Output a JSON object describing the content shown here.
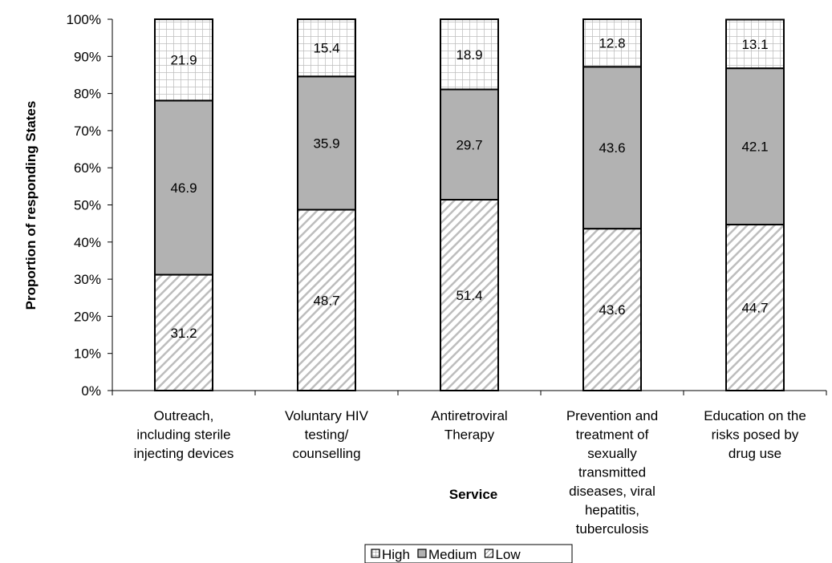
{
  "chart_data": {
    "type": "bar",
    "stacked": true,
    "percent": true,
    "title": "",
    "xlabel": "Service",
    "ylabel": "Proportion of responding States",
    "ylim": [
      0,
      100
    ],
    "y_ticks": [
      "0%",
      "10%",
      "20%",
      "30%",
      "40%",
      "50%",
      "60%",
      "70%",
      "80%",
      "90%",
      "100%"
    ],
    "categories": [
      [
        "Outreach,",
        "including sterile",
        "injecting devices"
      ],
      [
        "Voluntary HIV",
        "testing/",
        "counselling"
      ],
      [
        "Antiretroviral",
        "Therapy"
      ],
      [
        "Prevention and",
        "treatment of",
        "sexually",
        "transmitted",
        "diseases, viral",
        "hepatitis,",
        "tuberculosis"
      ],
      [
        "Education on the",
        "risks posed by",
        "drug use"
      ]
    ],
    "series": [
      {
        "name": "Low",
        "values": [
          31.2,
          48.7,
          51.4,
          43.6,
          44.7
        ],
        "pattern": "diagonal-hatch"
      },
      {
        "name": "Medium",
        "values": [
          46.9,
          35.9,
          29.7,
          43.6,
          42.1
        ],
        "color": "#b2b2b2"
      },
      {
        "name": "High",
        "values": [
          21.9,
          15.4,
          18.9,
          12.8,
          13.1
        ],
        "pattern": "grid"
      }
    ],
    "legend": {
      "position": "bottom",
      "order": [
        "High",
        "Medium",
        "Low"
      ]
    },
    "grid": false
  }
}
